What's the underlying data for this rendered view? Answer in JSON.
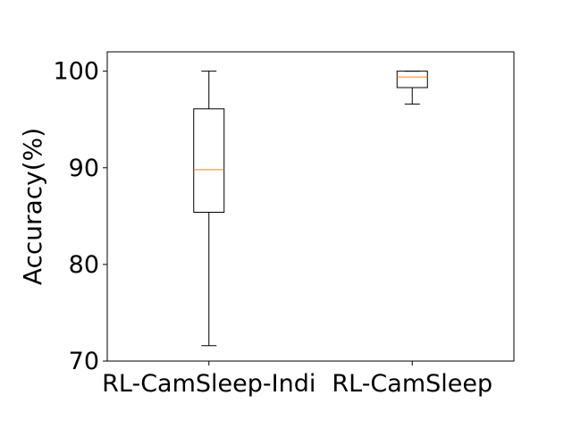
{
  "chart_data": {
    "type": "boxplot",
    "title": "",
    "xlabel": "",
    "ylabel": "Accuracy(%)",
    "ylim": [
      70,
      102
    ],
    "yticks": [
      70,
      80,
      90,
      100
    ],
    "yticklabels": [
      "70",
      "80",
      "90",
      "100"
    ],
    "grid": false,
    "categories": [
      "RL-CamSleep-Indi",
      "RL-CamSleep"
    ],
    "boxes": [
      {
        "category": "RL-CamSleep-Indi",
        "whisker_low": 71.6,
        "q1": 85.4,
        "median": 89.8,
        "q3": 96.1,
        "whisker_high": 100.0
      },
      {
        "category": "RL-CamSleep",
        "whisker_low": 96.6,
        "q1": 98.3,
        "median": 99.4,
        "q3": 100.0,
        "whisker_high": 100.0
      }
    ],
    "colors": {
      "box": "#000000",
      "median": "#ff7f0e"
    }
  }
}
